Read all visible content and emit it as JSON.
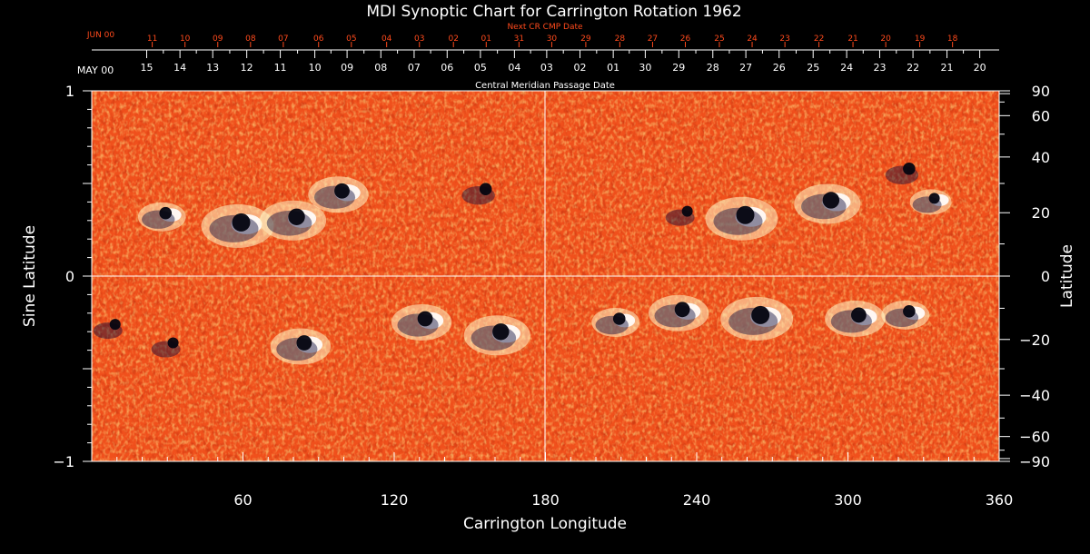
{
  "chart_data": {
    "type": "heatmap",
    "title": "MDI Synoptic Chart for Carrington Rotation 1962",
    "xlabel": "Carrington Longitude",
    "ylabel_left": "Sine Latitude",
    "ylabel_right": "Latitude",
    "xlim": [
      0,
      360
    ],
    "ylim": [
      -1,
      1
    ],
    "x_ticks": [
      60,
      120,
      180,
      240,
      300,
      360
    ],
    "y_ticks_left": [
      {
        "value": 1,
        "label": "1"
      },
      {
        "value": 0,
        "label": "0"
      },
      {
        "value": -1,
        "label": "−1"
      }
    ],
    "y_ticks_right": [
      {
        "deg": 90,
        "label": "90"
      },
      {
        "deg": 60,
        "label": "60"
      },
      {
        "deg": 40,
        "label": "40"
      },
      {
        "deg": 20,
        "label": "20"
      },
      {
        "deg": 0,
        "label": "0"
      },
      {
        "deg": -20,
        "label": "−20"
      },
      {
        "deg": -40,
        "label": "−40"
      },
      {
        "deg": -60,
        "label": "−60"
      },
      {
        "deg": -90,
        "label": "−90"
      }
    ],
    "cmp_axis": {
      "title": "Central Meridian Passage Date",
      "start_label": "MAY 00",
      "labels": [
        {
          "lon": 21.8,
          "label": "15"
        },
        {
          "lon": 35.0,
          "label": "14"
        },
        {
          "lon": 48.0,
          "label": "13"
        },
        {
          "lon": 61.5,
          "label": "12"
        },
        {
          "lon": 74.8,
          "label": "11"
        },
        {
          "lon": 88.5,
          "label": "10"
        },
        {
          "lon": 101.3,
          "label": "09"
        },
        {
          "lon": 114.7,
          "label": "08"
        },
        {
          "lon": 127.9,
          "label": "07"
        },
        {
          "lon": 141.0,
          "label": "06"
        },
        {
          "lon": 154.2,
          "label": "05"
        },
        {
          "lon": 167.7,
          "label": "04"
        },
        {
          "lon": 180.5,
          "label": "03"
        },
        {
          "lon": 193.7,
          "label": "02"
        },
        {
          "lon": 206.9,
          "label": "01"
        },
        {
          "lon": 219.6,
          "label": "30"
        },
        {
          "lon": 232.9,
          "label": "29"
        },
        {
          "lon": 246.4,
          "label": "28"
        },
        {
          "lon": 259.5,
          "label": "27"
        },
        {
          "lon": 272.7,
          "label": "26"
        },
        {
          "lon": 286.2,
          "label": "25"
        },
        {
          "lon": 299.5,
          "label": "24"
        },
        {
          "lon": 312.6,
          "label": "23"
        },
        {
          "lon": 325.8,
          "label": "22"
        },
        {
          "lon": 339.3,
          "label": "21"
        },
        {
          "lon": 352.3,
          "label": "20"
        }
      ]
    },
    "next_cmp_axis": {
      "title": "Next CR CMP Date",
      "start_label": "JUN 00",
      "labels": [
        {
          "lon": 24.0,
          "label": "11"
        },
        {
          "lon": 37.0,
          "label": "10"
        },
        {
          "lon": 50.0,
          "label": "09"
        },
        {
          "lon": 63.0,
          "label": "08"
        },
        {
          "lon": 76.0,
          "label": "07"
        },
        {
          "lon": 90.0,
          "label": "06"
        },
        {
          "lon": 103.0,
          "label": "05"
        },
        {
          "lon": 117.0,
          "label": "04"
        },
        {
          "lon": 130.0,
          "label": "03"
        },
        {
          "lon": 143.5,
          "label": "02"
        },
        {
          "lon": 156.5,
          "label": "01"
        },
        {
          "lon": 169.5,
          "label": "31"
        },
        {
          "lon": 182.5,
          "label": "30"
        },
        {
          "lon": 196.0,
          "label": "29"
        },
        {
          "lon": 209.5,
          "label": "28"
        },
        {
          "lon": 222.5,
          "label": "27"
        },
        {
          "lon": 235.5,
          "label": "26"
        },
        {
          "lon": 249.0,
          "label": "25"
        },
        {
          "lon": 262.0,
          "label": "24"
        },
        {
          "lon": 275.0,
          "label": "23"
        },
        {
          "lon": 288.5,
          "label": "22"
        },
        {
          "lon": 302.0,
          "label": "21"
        },
        {
          "lon": 315.0,
          "label": "20"
        },
        {
          "lon": 328.5,
          "label": "19"
        },
        {
          "lon": 341.5,
          "label": "18"
        }
      ]
    },
    "colors": {
      "background_field": "#f0501c",
      "positive_polarity": "#fff8c8",
      "negative_polarity": "#0c0c3c",
      "axis": "#ffffff",
      "next_cmp_text": "#ff4a1c"
    },
    "active_regions": [
      {
        "lon": 60,
        "sinlat": 0.27,
        "polarity": "mixed",
        "strength": 1.0
      },
      {
        "lon": 82,
        "sinlat": 0.3,
        "polarity": "mixed",
        "strength": 0.9
      },
      {
        "lon": 100,
        "sinlat": 0.44,
        "polarity": "mixed",
        "strength": 0.8
      },
      {
        "lon": 30,
        "sinlat": 0.32,
        "polarity": "mixed",
        "strength": 0.6
      },
      {
        "lon": 157,
        "sinlat": 0.45,
        "polarity": "negative",
        "strength": 0.6
      },
      {
        "lon": 260,
        "sinlat": 0.31,
        "polarity": "mixed",
        "strength": 1.0
      },
      {
        "lon": 294,
        "sinlat": 0.39,
        "polarity": "mixed",
        "strength": 0.9
      },
      {
        "lon": 237,
        "sinlat": 0.33,
        "polarity": "negative",
        "strength": 0.5
      },
      {
        "lon": 325,
        "sinlat": 0.56,
        "polarity": "negative",
        "strength": 0.6
      },
      {
        "lon": 335,
        "sinlat": 0.4,
        "polarity": "mixed",
        "strength": 0.5
      },
      {
        "lon": 266,
        "sinlat": -0.23,
        "polarity": "mixed",
        "strength": 1.0
      },
      {
        "lon": 235,
        "sinlat": -0.2,
        "polarity": "mixed",
        "strength": 0.8
      },
      {
        "lon": 305,
        "sinlat": -0.23,
        "polarity": "mixed",
        "strength": 0.8
      },
      {
        "lon": 85,
        "sinlat": -0.38,
        "polarity": "mixed",
        "strength": 0.8
      },
      {
        "lon": 163,
        "sinlat": -0.32,
        "polarity": "mixed",
        "strength": 0.9
      },
      {
        "lon": 133,
        "sinlat": -0.25,
        "polarity": "mixed",
        "strength": 0.8
      },
      {
        "lon": 10,
        "sinlat": -0.28,
        "polarity": "negative",
        "strength": 0.5
      },
      {
        "lon": 33,
        "sinlat": -0.38,
        "polarity": "negative",
        "strength": 0.5
      },
      {
        "lon": 325,
        "sinlat": -0.21,
        "polarity": "mixed",
        "strength": 0.6
      },
      {
        "lon": 210,
        "sinlat": -0.25,
        "polarity": "mixed",
        "strength": 0.6
      }
    ]
  }
}
